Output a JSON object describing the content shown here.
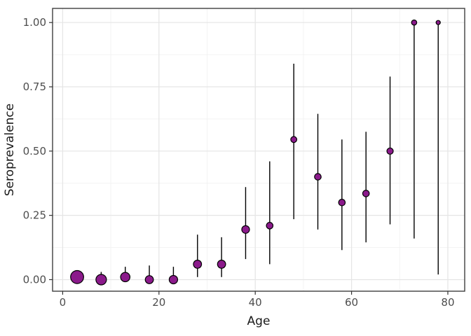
{
  "chart_data": {
    "type": "scatter",
    "title": "",
    "xlabel": "Age",
    "ylabel": "Seroprevalence",
    "legend": "none",
    "grid": true,
    "xlim": [
      -2.1,
      83.5
    ],
    "ylim": [
      -0.045,
      1.055
    ],
    "x_ticks": [
      0,
      20,
      40,
      60,
      80
    ],
    "x_tick_labels": [
      "0",
      "20",
      "40",
      "60",
      "80"
    ],
    "x_minor_ticks": [
      10,
      30,
      50,
      70
    ],
    "y_ticks": [
      0.0,
      0.25,
      0.5,
      0.75,
      1.0
    ],
    "y_tick_labels": [
      "0.00",
      "0.25",
      "0.50",
      "0.75",
      "1.00"
    ],
    "y_minor_ticks": [
      0.125,
      0.375,
      0.625,
      0.875
    ],
    "series": [
      {
        "name": "seroprevalence-by-age-bin",
        "marker": "circle",
        "errorbar_style": "pointrange-no-caps",
        "points": [
          {
            "age": 3,
            "value": 0.01,
            "ci_low": 0.0,
            "ci_high": 0.03,
            "radius_px": 9.3
          },
          {
            "age": 8,
            "value": 0.0,
            "ci_low": 0.0,
            "ci_high": 0.03,
            "radius_px": 7.5
          },
          {
            "age": 13,
            "value": 0.01,
            "ci_low": 0.0,
            "ci_high": 0.05,
            "radius_px": 6.7
          },
          {
            "age": 18,
            "value": 0.0,
            "ci_low": 0.0,
            "ci_high": 0.055,
            "radius_px": 5.8
          },
          {
            "age": 23,
            "value": 0.0,
            "ci_low": 0.0,
            "ci_high": 0.05,
            "radius_px": 6.0
          },
          {
            "age": 28,
            "value": 0.06,
            "ci_low": 0.01,
            "ci_high": 0.175,
            "radius_px": 5.8
          },
          {
            "age": 33,
            "value": 0.06,
            "ci_low": 0.01,
            "ci_high": 0.165,
            "radius_px": 5.8
          },
          {
            "age": 38,
            "value": 0.195,
            "ci_low": 0.08,
            "ci_high": 0.36,
            "radius_px": 5.5
          },
          {
            "age": 43,
            "value": 0.21,
            "ci_low": 0.06,
            "ci_high": 0.46,
            "radius_px": 4.7
          },
          {
            "age": 48,
            "value": 0.545,
            "ci_low": 0.235,
            "ci_high": 0.84,
            "radius_px": 4.3
          },
          {
            "age": 53,
            "value": 0.4,
            "ci_low": 0.195,
            "ci_high": 0.645,
            "radius_px": 4.7
          },
          {
            "age": 58,
            "value": 0.3,
            "ci_low": 0.115,
            "ci_high": 0.545,
            "radius_px": 4.7
          },
          {
            "age": 63,
            "value": 0.335,
            "ci_low": 0.145,
            "ci_high": 0.575,
            "radius_px": 4.7
          },
          {
            "age": 68,
            "value": 0.5,
            "ci_low": 0.215,
            "ci_high": 0.79,
            "radius_px": 4.5
          },
          {
            "age": 73,
            "value": 1.0,
            "ci_low": 0.16,
            "ci_high": 1.0,
            "radius_px": 3.7
          },
          {
            "age": 78,
            "value": 1.0,
            "ci_low": 0.02,
            "ci_high": 1.0,
            "radius_px": 3.0
          }
        ]
      }
    ],
    "colors": {
      "point_fill": "#8B1A8B",
      "point_stroke": "#000000",
      "errorbar": "#000000",
      "grid_major": "#e5e5e5",
      "grid_minor": "#f2f2f2",
      "panel_border": "#3f3f3f",
      "tick_mark": "#333333",
      "axis_text": "#4d4d4d",
      "axis_title": "#1a1a1a",
      "panel_background": "#ffffff"
    }
  }
}
